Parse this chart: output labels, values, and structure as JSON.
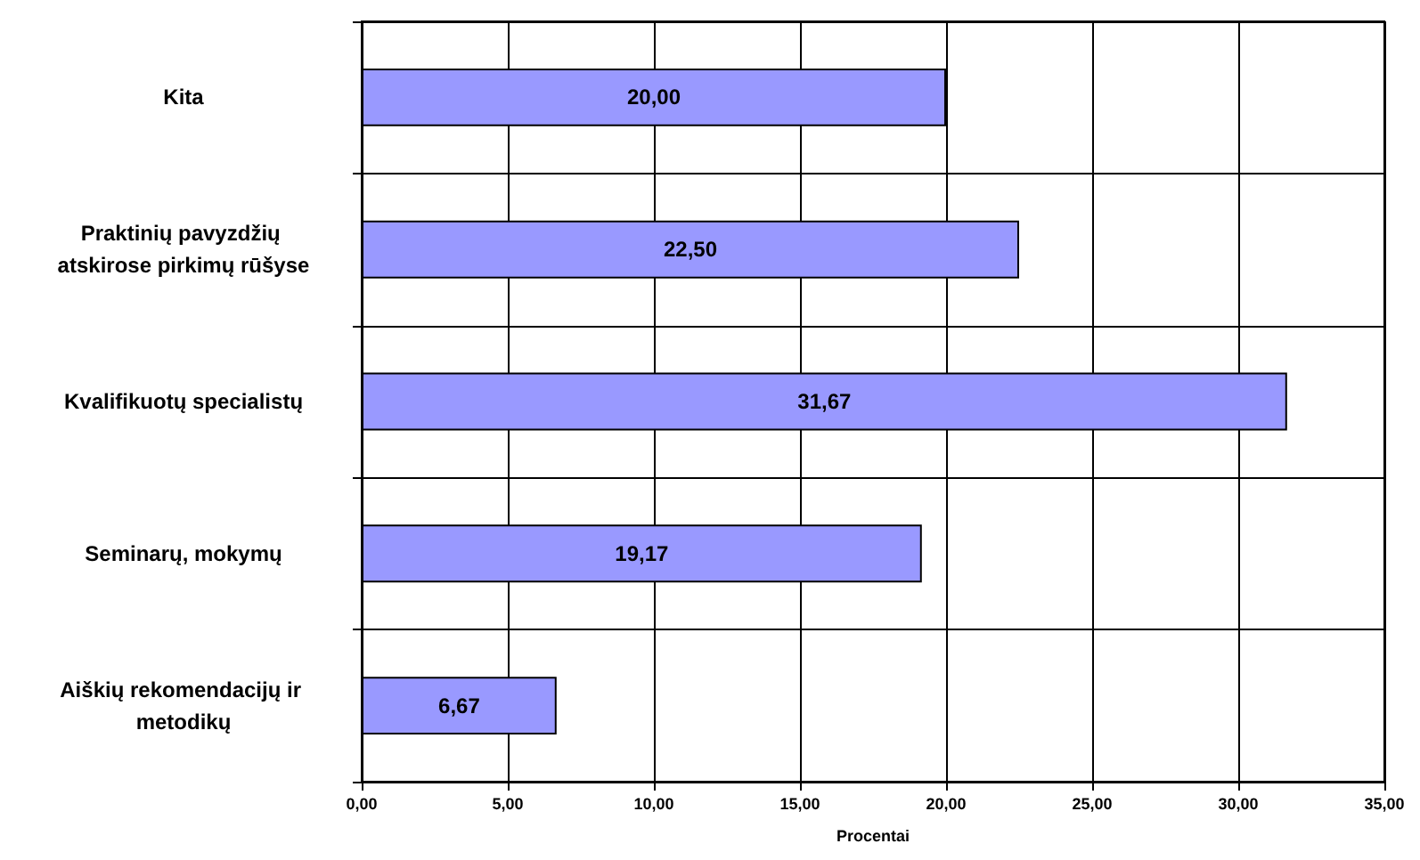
{
  "chart_data": {
    "type": "bar",
    "orientation": "horizontal",
    "xlabel": "Procentai",
    "categories": [
      "Kita",
      "Praktinių pavyzdžių atskirose pirkimų rūšyse",
      "Kvalifikuotų specialistų",
      "Seminarų, mokymų",
      "Aiškių rekomendacijų ir metodikų"
    ],
    "values": [
      20.0,
      22.5,
      31.67,
      19.17,
      6.67
    ],
    "value_labels": [
      "20,00",
      "22,50",
      "31,67",
      "19,17",
      "6,67"
    ],
    "color": "#9999ff",
    "xlim": [
      0,
      35
    ],
    "xticks": [
      {
        "value": 0,
        "label": "0,00"
      },
      {
        "value": 5,
        "label": "5,00"
      },
      {
        "value": 10,
        "label": "10,00"
      },
      {
        "value": 15,
        "label": "15,00"
      },
      {
        "value": 20,
        "label": "20,00"
      },
      {
        "value": 25,
        "label": "25,00"
      },
      {
        "value": 30,
        "label": "30,00"
      },
      {
        "value": 35,
        "label": "35,00"
      }
    ],
    "grid": true
  }
}
